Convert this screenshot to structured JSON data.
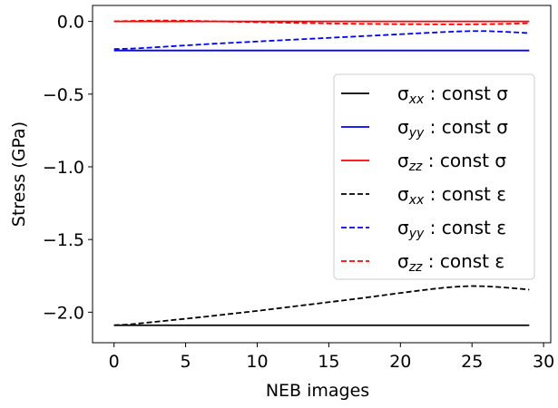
{
  "chart_data": {
    "type": "line",
    "title": "",
    "xlabel": "NEB images",
    "ylabel": "Stress (GPa)",
    "xlim": [
      -1.5,
      30.5
    ],
    "ylim": [
      -2.21,
      0.11
    ],
    "xticks": [
      0,
      5,
      10,
      15,
      20,
      25,
      30
    ],
    "xtick_labels": [
      "0",
      "5",
      "10",
      "15",
      "20",
      "25",
      "30"
    ],
    "yticks": [
      0.0,
      -0.5,
      -1.0,
      -1.5,
      -2.0
    ],
    "ytick_labels": [
      "0.0",
      "−0.5",
      "−1.0",
      "−1.5",
      "−2.0"
    ],
    "grid": false,
    "legend_position": "center-right",
    "x": [
      0,
      1,
      2,
      3,
      4,
      5,
      6,
      7,
      8,
      9,
      10,
      11,
      12,
      13,
      14,
      15,
      16,
      17,
      18,
      19,
      20,
      21,
      22,
      23,
      24,
      25,
      26,
      27,
      28,
      29
    ],
    "series": [
      {
        "name_main": "σ",
        "name_sub": "xx",
        "name_suffix": " : const σ",
        "color": "#000000",
        "style": "solid",
        "values": [
          -2.09,
          -2.09,
          -2.09,
          -2.09,
          -2.09,
          -2.09,
          -2.09,
          -2.09,
          -2.09,
          -2.09,
          -2.09,
          -2.09,
          -2.09,
          -2.09,
          -2.09,
          -2.09,
          -2.09,
          -2.09,
          -2.09,
          -2.09,
          -2.09,
          -2.09,
          -2.09,
          -2.09,
          -2.09,
          -2.09,
          -2.09,
          -2.09,
          -2.09,
          -2.09
        ]
      },
      {
        "name_main": "σ",
        "name_sub": "yy",
        "name_suffix": " : const σ",
        "color": "#0000ff",
        "style": "solid",
        "values": [
          -0.2,
          -0.2,
          -0.2,
          -0.2,
          -0.2,
          -0.2,
          -0.2,
          -0.2,
          -0.2,
          -0.2,
          -0.2,
          -0.2,
          -0.2,
          -0.2,
          -0.2,
          -0.2,
          -0.2,
          -0.2,
          -0.2,
          -0.2,
          -0.2,
          -0.2,
          -0.2,
          -0.2,
          -0.2,
          -0.2,
          -0.2,
          -0.2,
          -0.2,
          -0.2
        ]
      },
      {
        "name_main": "σ",
        "name_sub": "zz",
        "name_suffix": " : const σ",
        "color": "#ff0000",
        "style": "solid",
        "values": [
          0.0,
          0.0,
          0.0,
          0.0,
          0.0,
          0.0,
          0.0,
          0.0,
          0.0,
          0.0,
          0.0,
          0.0,
          0.0,
          0.0,
          0.0,
          0.0,
          0.0,
          0.0,
          0.0,
          0.0,
          0.0,
          0.0,
          0.0,
          0.0,
          0.0,
          0.0,
          0.0,
          0.0,
          0.0,
          0.0
        ]
      },
      {
        "name_main": "σ",
        "name_sub": "xx",
        "name_suffix": " : const ε",
        "color": "#000000",
        "style": "dashed",
        "values": [
          -2.09,
          -2.085,
          -2.075,
          -2.065,
          -2.055,
          -2.045,
          -2.035,
          -2.024,
          -2.013,
          -2.002,
          -1.991,
          -1.979,
          -1.967,
          -1.955,
          -1.943,
          -1.931,
          -1.919,
          -1.907,
          -1.894,
          -1.881,
          -1.868,
          -1.855,
          -1.843,
          -1.832,
          -1.824,
          -1.82,
          -1.822,
          -1.828,
          -1.836,
          -1.845
        ]
      },
      {
        "name_main": "σ",
        "name_sub": "yy",
        "name_suffix": " : const ε",
        "color": "#0000ff",
        "style": "dashed",
        "values": [
          -0.19,
          -0.188,
          -0.183,
          -0.177,
          -0.171,
          -0.165,
          -0.159,
          -0.153,
          -0.148,
          -0.143,
          -0.138,
          -0.133,
          -0.128,
          -0.123,
          -0.118,
          -0.113,
          -0.108,
          -0.103,
          -0.098,
          -0.093,
          -0.088,
          -0.083,
          -0.078,
          -0.073,
          -0.069,
          -0.066,
          -0.066,
          -0.07,
          -0.075,
          -0.08
        ]
      },
      {
        "name_main": "σ",
        "name_sub": "zz",
        "name_suffix": " : const ε",
        "color": "#ff0000",
        "style": "dashed",
        "values": [
          0.0,
          0.003,
          0.005,
          0.006,
          0.006,
          0.005,
          0.003,
          0.001,
          -0.001,
          -0.003,
          -0.005,
          -0.007,
          -0.009,
          -0.011,
          -0.012,
          -0.014,
          -0.015,
          -0.016,
          -0.017,
          -0.018,
          -0.019,
          -0.019,
          -0.02,
          -0.02,
          -0.02,
          -0.02,
          -0.019,
          -0.017,
          -0.015,
          -0.012
        ]
      }
    ]
  }
}
